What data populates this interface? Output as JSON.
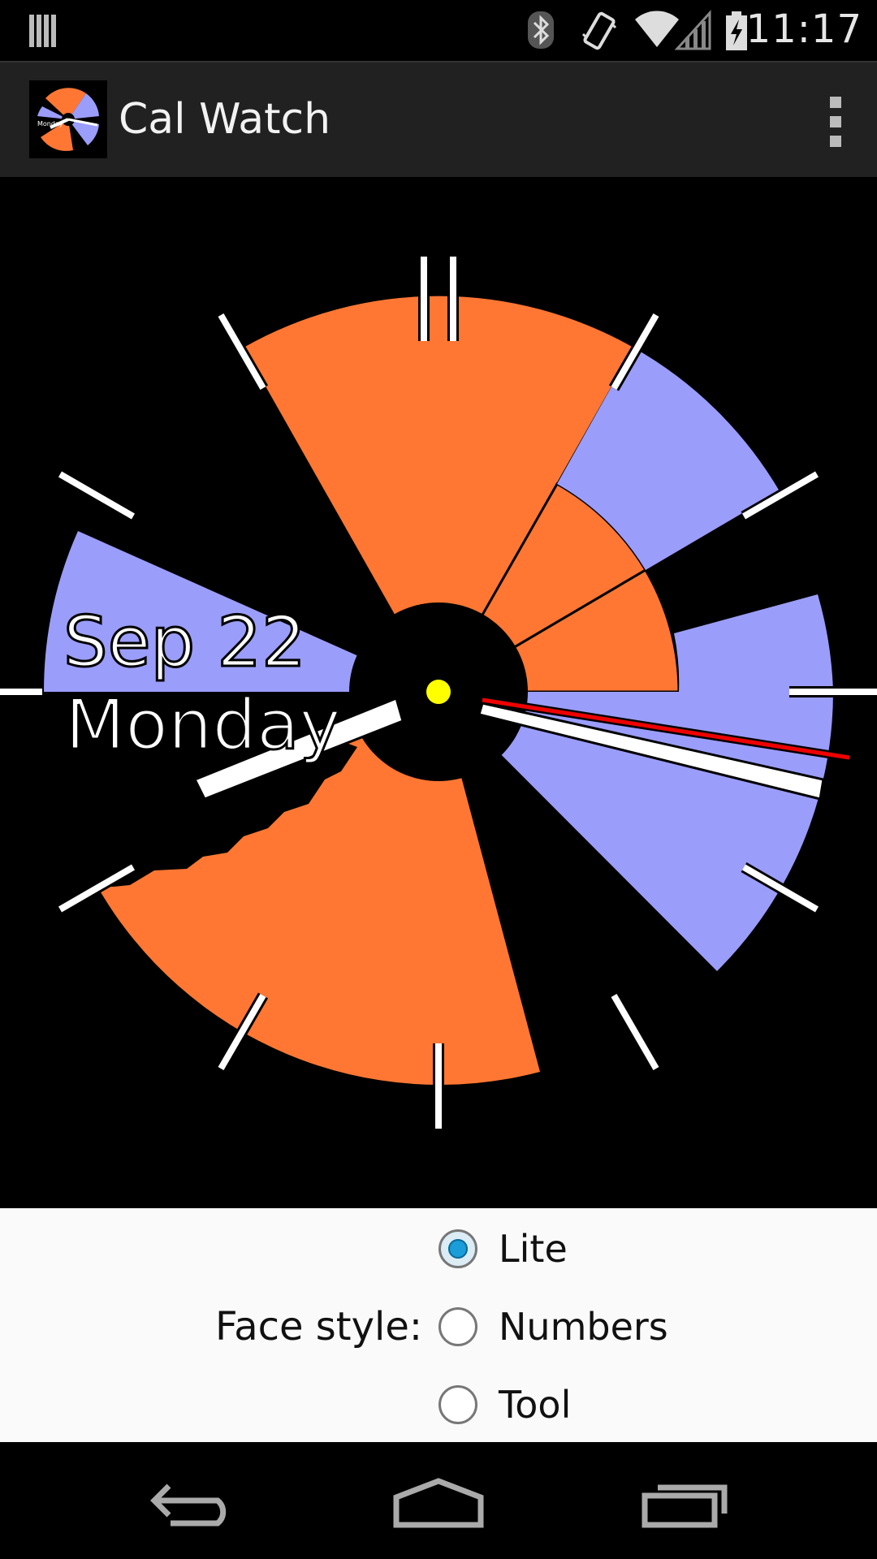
{
  "status_bar": {
    "time": "11:17",
    "icons": [
      "notification-icon",
      "bluetooth-icon",
      "vibrate-icon",
      "wifi-icon",
      "signal-icon",
      "battery-charging-icon"
    ]
  },
  "action_bar": {
    "title": "Cal Watch",
    "app_icon": "cal-watch-app-icon",
    "overflow_icon": "overflow-menu-icon"
  },
  "watch": {
    "date": "Sep 22",
    "day": "Monday",
    "colors": {
      "orange": "#ff7733",
      "lavender": "#9b9dfb",
      "center_dot": "#ffff00",
      "second_hand": "#ee0000"
    }
  },
  "settings": {
    "label": "Face style:",
    "options": [
      {
        "label": "Lite",
        "selected": true
      },
      {
        "label": "Numbers",
        "selected": false
      },
      {
        "label": "Tool",
        "selected": false
      }
    ]
  },
  "nav_bar": {
    "icons": [
      "back-icon",
      "home-icon",
      "recent-apps-icon"
    ]
  }
}
